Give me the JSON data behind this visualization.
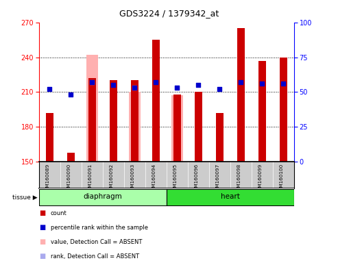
{
  "title": "GDS3224 / 1379342_at",
  "samples": [
    "GSM160089",
    "GSM160090",
    "GSM160091",
    "GSM160092",
    "GSM160093",
    "GSM160094",
    "GSM160095",
    "GSM160096",
    "GSM160097",
    "GSM160098",
    "GSM160099",
    "GSM160100"
  ],
  "tissue_groups": [
    {
      "label": "diaphragm",
      "start": 0,
      "end": 6,
      "color": "#aaffaa"
    },
    {
      "label": "heart",
      "start": 6,
      "end": 12,
      "color": "#33dd33"
    }
  ],
  "red_bars": [
    192,
    158,
    222,
    220,
    220,
    255,
    208,
    210,
    192,
    265,
    237,
    240
  ],
  "pink_bars": [
    null,
    null,
    242,
    null,
    210,
    null,
    207,
    null,
    null,
    null,
    null,
    null
  ],
  "blue_dots": [
    52,
    48,
    57,
    55,
    53,
    57,
    53,
    55,
    52,
    57,
    56,
    56
  ],
  "light_blue_dots": [
    null,
    null,
    57,
    null,
    53,
    null,
    53,
    null,
    null,
    null,
    null,
    null
  ],
  "ylim_left": [
    150,
    270
  ],
  "ylim_right": [
    0,
    100
  ],
  "yticks_left": [
    150,
    180,
    210,
    240,
    270
  ],
  "yticks_right": [
    0,
    25,
    50,
    75,
    100
  ],
  "grid_lines": [
    180,
    210,
    240
  ],
  "red_color": "#cc0000",
  "pink_color": "#ffb0b0",
  "blue_color": "#0000cc",
  "light_blue_color": "#aaaaee",
  "legend_items": [
    {
      "color": "#cc0000",
      "label": "count"
    },
    {
      "color": "#0000cc",
      "label": "percentile rank within the sample"
    },
    {
      "color": "#ffb0b0",
      "label": "value, Detection Call = ABSENT"
    },
    {
      "color": "#aaaaee",
      "label": "rank, Detection Call = ABSENT"
    }
  ]
}
